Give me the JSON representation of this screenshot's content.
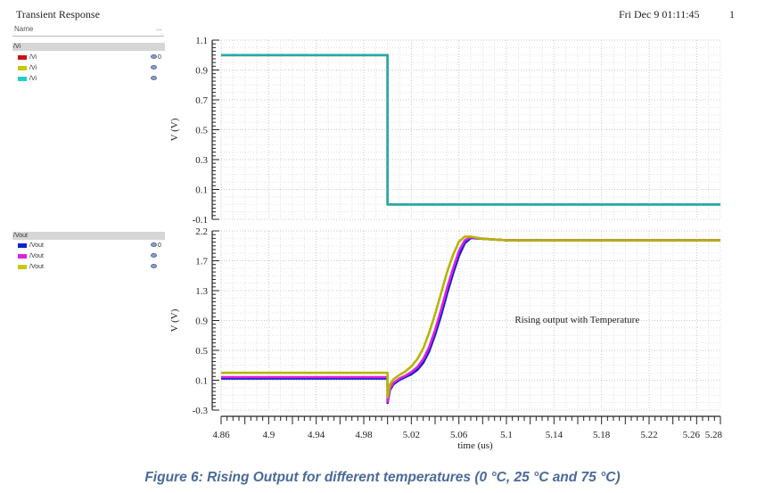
{
  "header": {
    "title": "Transient Response",
    "date": "Fri Dec 9 01:11:45",
    "page_number": "1",
    "name_column": "Name",
    "name_menu": "..."
  },
  "legend": {
    "top_group": {
      "label": "/Vi",
      "items": [
        {
          "label": "/Vi",
          "color": "#cc1111",
          "value": "0"
        },
        {
          "label": "/Vi",
          "color": "#c8c800",
          "value": ""
        },
        {
          "label": "/Vi",
          "color": "#22cccc",
          "value": ""
        }
      ]
    },
    "bottom_group": {
      "label": "/Vout",
      "items": [
        {
          "label": "/Vout",
          "color": "#1122cc",
          "value": "0"
        },
        {
          "label": "/Vout",
          "color": "#dd22dd",
          "value": ""
        },
        {
          "label": "/Vout",
          "color": "#c8c800",
          "value": ""
        }
      ]
    }
  },
  "chart_data": [
    {
      "type": "line",
      "ylabel": "V (V)",
      "ylim": [
        -0.1,
        1.1
      ],
      "yticks": [
        "1.1",
        "0.9",
        "0.7",
        "0.5",
        "0.3",
        "0.1",
        "-0.1"
      ],
      "xlim": [
        4.86,
        5.28
      ],
      "grid": true,
      "series": [
        {
          "name": "/Vi",
          "color": "#cc1111",
          "x": [
            4.86,
            5.0,
            5.0,
            5.28
          ],
          "y": [
            1.0,
            1.0,
            0.0,
            0.0
          ]
        },
        {
          "name": "/Vi",
          "color": "#c8c800",
          "x": [
            4.86,
            5.0,
            5.0,
            5.28
          ],
          "y": [
            1.0,
            1.0,
            0.0,
            0.0
          ]
        },
        {
          "name": "/Vi",
          "color": "#22aaaa",
          "x": [
            4.86,
            5.0,
            5.0,
            5.28
          ],
          "y": [
            1.0,
            1.0,
            0.0,
            0.0
          ]
        }
      ]
    },
    {
      "type": "line",
      "ylabel": "V (V)",
      "xlabel": "time (us)",
      "ylim": [
        -0.3,
        2.2
      ],
      "yticks": [
        "2.2",
        "1.7",
        "1.3",
        "0.9",
        "0.5",
        "0.1",
        "-0.3"
      ],
      "xlim": [
        4.86,
        5.28
      ],
      "xticks": [
        "4.86",
        "4.9",
        "4.94",
        "4.98",
        "5.02",
        "5.06",
        "5.1",
        "5.14",
        "5.18",
        "5.22",
        "5.26",
        "5.28"
      ],
      "grid": true,
      "annotation": "Rising output with Temperature",
      "series": [
        {
          "name": "/Vout",
          "color": "#1122cc",
          "x": [
            4.86,
            5.0,
            5.0,
            5.002,
            5.005,
            5.01,
            5.015,
            5.02,
            5.025,
            5.03,
            5.035,
            5.04,
            5.045,
            5.05,
            5.055,
            5.06,
            5.065,
            5.07,
            5.08,
            5.1,
            5.28
          ],
          "y": [
            0.14,
            0.14,
            -0.2,
            -0.02,
            0.06,
            0.12,
            0.16,
            0.2,
            0.26,
            0.36,
            0.52,
            0.75,
            1.02,
            1.32,
            1.6,
            1.85,
            2.03,
            2.1,
            2.09,
            2.07,
            2.07
          ]
        },
        {
          "name": "/Vout",
          "color": "#dd22dd",
          "x": [
            4.86,
            5.0,
            5.0,
            5.002,
            5.005,
            5.01,
            5.015,
            5.02,
            5.025,
            5.03,
            5.035,
            5.04,
            5.045,
            5.05,
            5.055,
            5.06,
            5.065,
            5.07,
            5.08,
            5.1,
            5.28
          ],
          "y": [
            0.16,
            0.16,
            -0.18,
            0.0,
            0.08,
            0.14,
            0.18,
            0.23,
            0.3,
            0.41,
            0.58,
            0.82,
            1.1,
            1.4,
            1.67,
            1.92,
            2.07,
            2.11,
            2.09,
            2.07,
            2.07
          ]
        },
        {
          "name": "/Vout",
          "color": "#b5b500",
          "x": [
            4.86,
            5.0,
            5.0,
            5.002,
            5.005,
            5.01,
            5.015,
            5.02,
            5.025,
            5.03,
            5.035,
            5.04,
            5.045,
            5.05,
            5.055,
            5.06,
            5.065,
            5.07,
            5.08,
            5.1,
            5.28
          ],
          "y": [
            0.22,
            0.22,
            -0.12,
            0.06,
            0.13,
            0.19,
            0.24,
            0.31,
            0.41,
            0.56,
            0.78,
            1.04,
            1.33,
            1.62,
            1.86,
            2.05,
            2.12,
            2.12,
            2.09,
            2.07,
            2.07
          ]
        }
      ]
    }
  ],
  "caption": "Figure 6: Rising Output for different temperatures (0 °C, 25 °C and 75 °C)"
}
